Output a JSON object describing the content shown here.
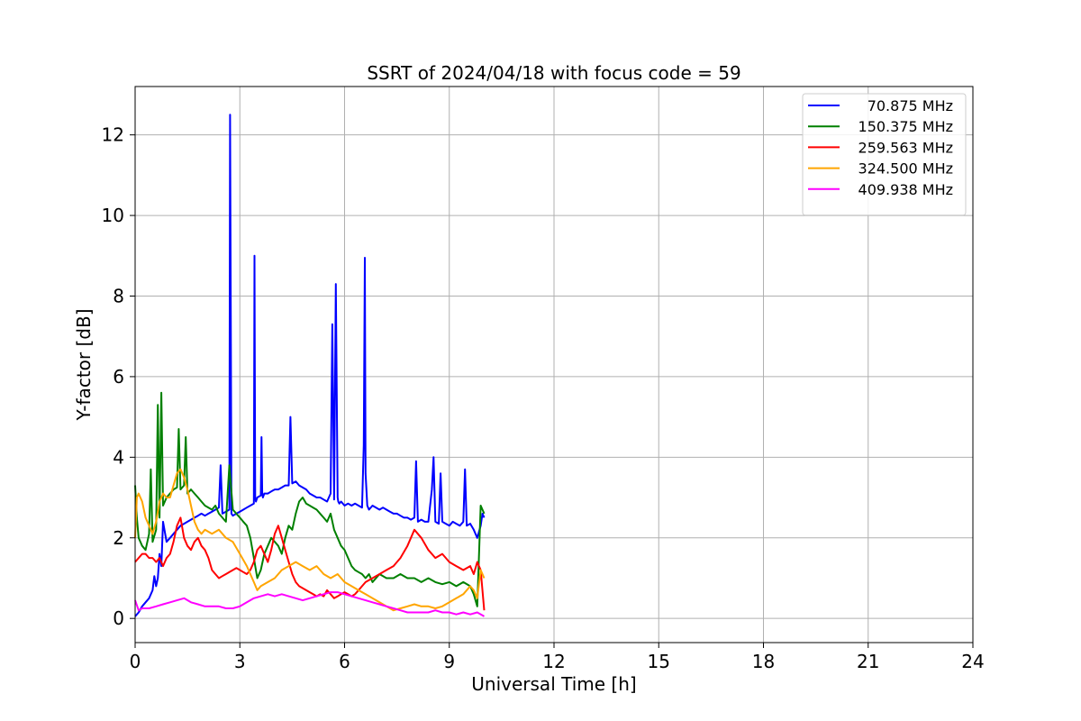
{
  "chart_data": {
    "type": "line",
    "title": "SSRT of 2024/04/18 with focus code = 59",
    "xlabel": "Universal Time [h]",
    "ylabel": "Y-factor [dB]",
    "xlim": [
      0,
      24
    ],
    "ylim": [
      -0.6,
      13.2
    ],
    "xticks": [
      0,
      3,
      6,
      9,
      12,
      15,
      18,
      21,
      24
    ],
    "yticks": [
      0,
      2,
      4,
      6,
      8,
      10,
      12
    ],
    "grid": true,
    "legend_position": "top-right",
    "series": [
      {
        "name": "70.875 MHz",
        "color": "#0000ff",
        "x": [
          0,
          0.1,
          0.2,
          0.3,
          0.4,
          0.5,
          0.55,
          0.6,
          0.65,
          0.7,
          0.75,
          0.8,
          0.9,
          1.0,
          1.1,
          1.2,
          1.3,
          1.4,
          1.5,
          1.6,
          1.7,
          1.8,
          1.9,
          2.0,
          2.1,
          2.2,
          2.3,
          2.4,
          2.45,
          2.5,
          2.6,
          2.7,
          2.72,
          2.74,
          2.76,
          2.8,
          2.9,
          3.0,
          3.1,
          3.2,
          3.3,
          3.4,
          3.42,
          3.44,
          3.46,
          3.5,
          3.6,
          3.62,
          3.64,
          3.66,
          3.7,
          3.8,
          3.9,
          4.0,
          4.1,
          4.2,
          4.3,
          4.4,
          4.45,
          4.5,
          4.6,
          4.7,
          4.8,
          4.9,
          5.0,
          5.1,
          5.2,
          5.3,
          5.4,
          5.5,
          5.6,
          5.65,
          5.7,
          5.75,
          5.8,
          5.82,
          5.85,
          5.9,
          6.0,
          6.1,
          6.2,
          6.3,
          6.4,
          6.5,
          6.55,
          6.58,
          6.6,
          6.65,
          6.7,
          6.8,
          6.9,
          7.0,
          7.1,
          7.2,
          7.3,
          7.4,
          7.5,
          7.6,
          7.7,
          7.8,
          7.9,
          8.0,
          8.05,
          8.1,
          8.2,
          8.3,
          8.4,
          8.5,
          8.55,
          8.6,
          8.7,
          8.75,
          8.8,
          8.9,
          9.0,
          9.1,
          9.2,
          9.3,
          9.4,
          9.45,
          9.5,
          9.6,
          9.7,
          9.8,
          9.9,
          9.95,
          10.0
        ],
        "y": [
          0.05,
          0.15,
          0.3,
          0.4,
          0.5,
          0.7,
          1.05,
          0.8,
          1.0,
          1.6,
          1.3,
          2.4,
          1.9,
          2.0,
          2.1,
          2.2,
          2.3,
          2.35,
          2.4,
          2.45,
          2.5,
          2.55,
          2.6,
          2.55,
          2.6,
          2.65,
          2.7,
          2.75,
          3.8,
          2.6,
          2.65,
          2.7,
          12.5,
          7.5,
          2.6,
          2.55,
          2.6,
          2.65,
          2.7,
          2.75,
          2.8,
          2.85,
          9.0,
          3.0,
          2.9,
          3.0,
          3.05,
          4.5,
          3.1,
          3.0,
          3.1,
          3.1,
          3.15,
          3.2,
          3.2,
          3.25,
          3.3,
          3.3,
          5.0,
          3.35,
          3.4,
          3.3,
          3.25,
          3.2,
          3.1,
          3.05,
          3.0,
          3.0,
          2.95,
          2.9,
          3.1,
          7.3,
          2.95,
          8.3,
          3.0,
          2.9,
          2.85,
          2.9,
          2.8,
          2.85,
          2.8,
          2.85,
          2.8,
          2.75,
          4.3,
          8.95,
          3.6,
          2.8,
          2.7,
          2.8,
          2.75,
          2.7,
          2.75,
          2.7,
          2.65,
          2.6,
          2.6,
          2.55,
          2.5,
          2.5,
          2.45,
          2.5,
          3.9,
          2.4,
          2.45,
          2.4,
          2.4,
          3.2,
          4.0,
          2.4,
          2.35,
          3.6,
          2.4,
          2.35,
          2.3,
          2.4,
          2.35,
          2.3,
          2.4,
          3.7,
          2.3,
          2.35,
          2.2,
          2.0,
          2.3,
          2.6,
          2.5
        ]
      },
      {
        "name": "150.375 MHz",
        "color": "#008000",
        "x": [
          0,
          0.05,
          0.1,
          0.2,
          0.3,
          0.4,
          0.45,
          0.5,
          0.6,
          0.65,
          0.7,
          0.75,
          0.8,
          0.9,
          1.0,
          1.1,
          1.2,
          1.25,
          1.3,
          1.4,
          1.45,
          1.5,
          1.6,
          1.7,
          1.8,
          1.9,
          2.0,
          2.1,
          2.2,
          2.3,
          2.4,
          2.5,
          2.6,
          2.7,
          2.8,
          2.9,
          3.0,
          3.1,
          3.2,
          3.3,
          3.4,
          3.5,
          3.6,
          3.7,
          3.8,
          3.9,
          4.0,
          4.1,
          4.2,
          4.3,
          4.4,
          4.5,
          4.6,
          4.7,
          4.8,
          4.9,
          5.0,
          5.1,
          5.2,
          5.3,
          5.4,
          5.5,
          5.6,
          5.7,
          5.8,
          5.9,
          6.0,
          6.1,
          6.2,
          6.3,
          6.4,
          6.5,
          6.6,
          6.7,
          6.8,
          6.9,
          7.0,
          7.2,
          7.4,
          7.6,
          7.8,
          8.0,
          8.2,
          8.4,
          8.6,
          8.8,
          9.0,
          9.2,
          9.4,
          9.6,
          9.7,
          9.8,
          9.9,
          10.0
        ],
        "y": [
          3.3,
          2.5,
          2.0,
          1.8,
          1.7,
          2.1,
          3.7,
          1.9,
          2.2,
          5.3,
          2.5,
          5.6,
          2.8,
          3.0,
          3.1,
          3.2,
          3.25,
          4.7,
          3.2,
          3.3,
          4.5,
          3.1,
          3.2,
          3.1,
          3.0,
          2.9,
          2.8,
          2.75,
          2.7,
          2.8,
          2.6,
          2.5,
          2.4,
          3.8,
          2.7,
          2.6,
          2.5,
          2.4,
          2.3,
          2.0,
          1.5,
          1.0,
          1.2,
          1.6,
          1.8,
          2.0,
          1.9,
          1.8,
          1.6,
          2.0,
          2.3,
          2.2,
          2.6,
          2.9,
          3.0,
          2.85,
          2.8,
          2.75,
          2.7,
          2.6,
          2.5,
          2.4,
          2.6,
          2.2,
          2.0,
          1.8,
          1.7,
          1.5,
          1.3,
          1.2,
          1.15,
          1.1,
          1.0,
          1.1,
          0.9,
          1.0,
          1.1,
          1.0,
          1.0,
          1.1,
          1.0,
          1.0,
          0.9,
          1.0,
          0.9,
          0.85,
          0.9,
          0.8,
          0.9,
          0.8,
          0.6,
          0.3,
          2.8,
          2.6
        ]
      },
      {
        "name": "259.563 MHz",
        "color": "#ff0000",
        "x": [
          0,
          0.1,
          0.2,
          0.3,
          0.4,
          0.5,
          0.6,
          0.7,
          0.8,
          0.9,
          1.0,
          1.1,
          1.2,
          1.3,
          1.4,
          1.5,
          1.6,
          1.7,
          1.8,
          1.9,
          2.0,
          2.1,
          2.2,
          2.3,
          2.4,
          2.5,
          2.6,
          2.7,
          2.8,
          2.9,
          3.0,
          3.1,
          3.2,
          3.3,
          3.4,
          3.5,
          3.6,
          3.7,
          3.8,
          3.9,
          4.0,
          4.1,
          4.2,
          4.3,
          4.4,
          4.5,
          4.6,
          4.7,
          4.8,
          4.9,
          5.0,
          5.1,
          5.2,
          5.3,
          5.4,
          5.5,
          5.6,
          5.7,
          5.8,
          5.9,
          6.0,
          6.1,
          6.2,
          6.3,
          6.4,
          6.5,
          6.6,
          6.8,
          7.0,
          7.2,
          7.4,
          7.6,
          7.8,
          8.0,
          8.2,
          8.4,
          8.6,
          8.8,
          9.0,
          9.2,
          9.4,
          9.6,
          9.7,
          9.8,
          9.9,
          10.0
        ],
        "y": [
          1.4,
          1.5,
          1.6,
          1.6,
          1.5,
          1.5,
          1.4,
          1.5,
          1.3,
          1.5,
          1.6,
          1.9,
          2.3,
          2.5,
          2.0,
          1.8,
          1.7,
          1.9,
          2.0,
          1.8,
          1.7,
          1.5,
          1.2,
          1.1,
          1.0,
          1.05,
          1.1,
          1.15,
          1.2,
          1.25,
          1.2,
          1.15,
          1.1,
          1.2,
          1.4,
          1.7,
          1.8,
          1.6,
          1.4,
          1.7,
          2.1,
          2.3,
          2.0,
          1.7,
          1.4,
          1.1,
          0.9,
          0.8,
          0.75,
          0.7,
          0.65,
          0.6,
          0.55,
          0.6,
          0.55,
          0.7,
          0.6,
          0.5,
          0.55,
          0.6,
          0.65,
          0.6,
          0.55,
          0.6,
          0.7,
          0.8,
          0.9,
          1.0,
          1.1,
          1.2,
          1.3,
          1.5,
          1.8,
          2.2,
          2.0,
          1.7,
          1.5,
          1.6,
          1.4,
          1.3,
          1.2,
          1.3,
          1.1,
          1.4,
          1.2,
          0.2
        ]
      },
      {
        "name": "324.500 MHz",
        "color": "#ffa500",
        "x": [
          0,
          0.05,
          0.1,
          0.2,
          0.3,
          0.4,
          0.5,
          0.6,
          0.7,
          0.8,
          0.9,
          1.0,
          1.1,
          1.2,
          1.3,
          1.4,
          1.5,
          1.6,
          1.7,
          1.8,
          1.9,
          2.0,
          2.2,
          2.4,
          2.6,
          2.8,
          3.0,
          3.2,
          3.4,
          3.5,
          3.6,
          3.8,
          4.0,
          4.2,
          4.4,
          4.6,
          4.8,
          5.0,
          5.2,
          5.4,
          5.6,
          5.8,
          6.0,
          6.2,
          6.4,
          6.6,
          6.8,
          7.0,
          7.2,
          7.4,
          7.6,
          7.8,
          8.0,
          8.2,
          8.4,
          8.6,
          8.8,
          9.0,
          9.2,
          9.4,
          9.6,
          9.7,
          9.8,
          9.9,
          10.0
        ],
        "y": [
          2.0,
          3.0,
          3.1,
          2.9,
          2.5,
          2.3,
          2.1,
          2.4,
          2.9,
          3.1,
          3.0,
          3.0,
          3.3,
          3.6,
          3.7,
          3.5,
          3.2,
          2.8,
          2.4,
          2.2,
          2.1,
          2.2,
          2.1,
          2.2,
          2.0,
          1.9,
          1.6,
          1.3,
          0.9,
          0.7,
          0.8,
          0.9,
          1.0,
          1.2,
          1.3,
          1.4,
          1.3,
          1.2,
          1.3,
          1.1,
          1.0,
          1.1,
          0.9,
          0.8,
          0.7,
          0.6,
          0.5,
          0.4,
          0.3,
          0.2,
          0.25,
          0.3,
          0.35,
          0.3,
          0.3,
          0.25,
          0.3,
          0.4,
          0.5,
          0.6,
          0.8,
          0.7,
          0.5,
          1.2,
          1.0
        ]
      },
      {
        "name": "409.938 MHz",
        "color": "#ff00ff",
        "x": [
          0,
          0.1,
          0.2,
          0.4,
          0.6,
          0.8,
          1.0,
          1.2,
          1.4,
          1.6,
          1.8,
          2.0,
          2.2,
          2.4,
          2.6,
          2.8,
          3.0,
          3.2,
          3.4,
          3.6,
          3.8,
          4.0,
          4.2,
          4.4,
          4.6,
          4.8,
          5.0,
          5.2,
          5.4,
          5.6,
          5.8,
          6.0,
          6.2,
          6.4,
          6.6,
          6.8,
          7.0,
          7.2,
          7.4,
          7.6,
          7.8,
          8.0,
          8.2,
          8.4,
          8.6,
          8.8,
          9.0,
          9.2,
          9.4,
          9.6,
          9.8,
          10.0
        ],
        "y": [
          0.45,
          0.2,
          0.25,
          0.25,
          0.3,
          0.35,
          0.4,
          0.45,
          0.5,
          0.4,
          0.35,
          0.3,
          0.3,
          0.3,
          0.25,
          0.25,
          0.3,
          0.4,
          0.5,
          0.55,
          0.6,
          0.55,
          0.6,
          0.55,
          0.5,
          0.45,
          0.5,
          0.55,
          0.6,
          0.65,
          0.65,
          0.6,
          0.55,
          0.5,
          0.45,
          0.4,
          0.35,
          0.3,
          0.25,
          0.2,
          0.15,
          0.15,
          0.15,
          0.15,
          0.2,
          0.15,
          0.15,
          0.1,
          0.15,
          0.1,
          0.15,
          0.05
        ]
      }
    ]
  }
}
